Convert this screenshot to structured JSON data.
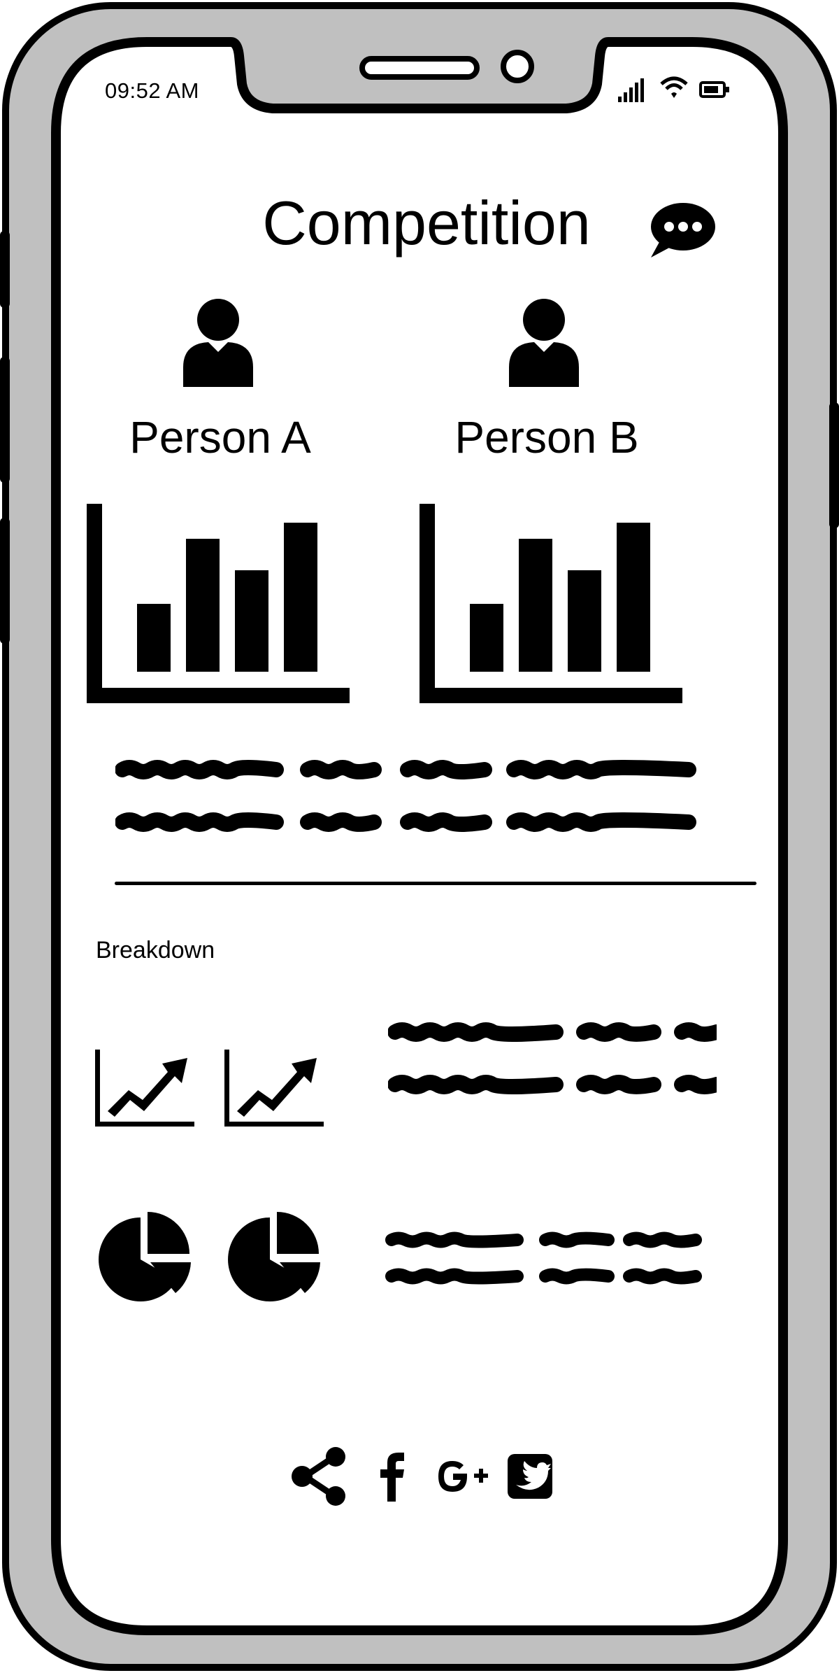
{
  "status_bar": {
    "time": "09:52 AM",
    "icons": [
      "signal-icon",
      "wifi-icon",
      "battery-icon"
    ]
  },
  "header": {
    "title": "Competition",
    "chat_icon": "chat-bubble-icon"
  },
  "competitors": [
    {
      "label": "Person A",
      "avatar_icon": "user-icon",
      "chart_icon": "bar-chart-icon"
    },
    {
      "label": "Person B",
      "avatar_icon": "user-icon",
      "chart_icon": "bar-chart-icon"
    }
  ],
  "breakdown": {
    "label": "Breakdown",
    "rows": [
      {
        "icons": [
          "trend-chart-icon",
          "trend-chart-icon"
        ]
      },
      {
        "icons": [
          "pie-chart-icon",
          "pie-chart-icon"
        ]
      }
    ]
  },
  "share_bar": {
    "icons": [
      "share-icon",
      "facebook-icon",
      "google-plus-icon",
      "twitter-icon"
    ]
  },
  "colors": {
    "frame": "#c0c0c0",
    "ink": "#000000",
    "screen": "#ffffff"
  }
}
